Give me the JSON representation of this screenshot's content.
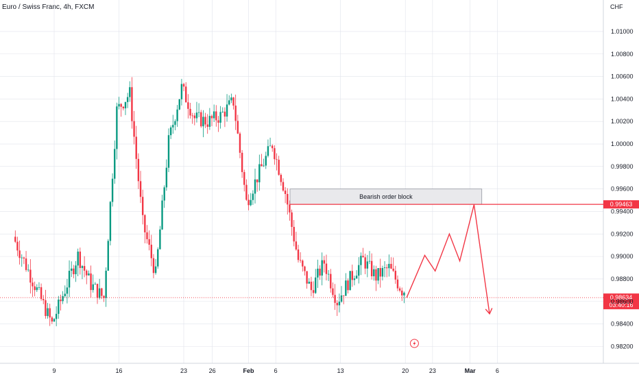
{
  "header": {
    "title": "Euro / Swiss Franc, 4h, FXCM"
  },
  "chart_data": {
    "type": "candlestick",
    "currency": "CHF",
    "y_ticks": [
      "1.01000",
      "1.00800",
      "1.00600",
      "1.00400",
      "1.00200",
      "1.00000",
      "0.99800",
      "0.99600",
      "0.99400",
      "0.99200",
      "0.99000",
      "0.98800",
      "0.98600",
      "0.98400",
      "0.98200"
    ],
    "ylim": [
      0.9805,
      1.0128
    ],
    "x_ticks": [
      {
        "label": "9",
        "t": 5.0
      },
      {
        "label": "16",
        "t": 10.0
      },
      {
        "label": "23",
        "t": 15.0
      },
      {
        "label": "26",
        "t": 17.2
      },
      {
        "label": "Feb",
        "t": 20.0
      },
      {
        "label": "6",
        "t": 22.1
      },
      {
        "label": "13",
        "t": 27.1
      },
      {
        "label": "20",
        "t": 32.1
      },
      {
        "label": "23",
        "t": 34.2
      },
      {
        "label": "Mar",
        "t": 37.1
      },
      {
        "label": "6",
        "t": 39.2
      }
    ],
    "trend_points": [
      [
        2,
        0.99175
      ],
      [
        5,
        0.984
      ],
      [
        7,
        0.9901
      ],
      [
        8,
        0.9875
      ],
      [
        9,
        0.9863
      ],
      [
        10,
        1.003
      ],
      [
        11,
        1.0045
      ],
      [
        12,
        0.993
      ],
      [
        13,
        0.9884
      ],
      [
        14,
        1.0002
      ],
      [
        15,
        1.005
      ],
      [
        16,
        1.0023
      ],
      [
        17,
        1.002
      ],
      [
        18,
        1.0025
      ],
      [
        19,
        1.0038
      ],
      [
        20,
        0.9948
      ],
      [
        21,
        0.9975
      ],
      [
        22,
        1.0
      ],
      [
        23,
        0.9957
      ],
      [
        24,
        0.9897
      ],
      [
        25,
        0.987
      ],
      [
        26,
        0.9895
      ],
      [
        27,
        0.986
      ],
      [
        28,
        0.988
      ],
      [
        29,
        0.9897
      ],
      [
        30,
        0.9882
      ],
      [
        31,
        0.989
      ],
      [
        32,
        0.987
      ]
    ],
    "annotations": {
      "order_block": {
        "label": "Bearish order block",
        "from_t": 23.2,
        "to_t": 38.0,
        "top": 0.996,
        "bottom": 0.99463
      },
      "resistance_line": {
        "price": 0.99463,
        "label": "0.99463"
      },
      "current_price": {
        "price": 0.98634,
        "label": "0.98634",
        "countdown": "03:40:16"
      },
      "projection": [
        [
          32.2,
          0.98634
        ],
        [
          33.6,
          0.9901
        ],
        [
          34.4,
          0.9887
        ],
        [
          35.5,
          0.992
        ],
        [
          36.3,
          0.9896
        ],
        [
          37.4,
          0.9946
        ],
        [
          38.6,
          0.9849
        ]
      ]
    },
    "colors": {
      "up": "#089981",
      "down": "#f23645",
      "line": "#f23645",
      "box_fill": "#e9e9ec",
      "grid": "#e0e3eb"
    }
  }
}
